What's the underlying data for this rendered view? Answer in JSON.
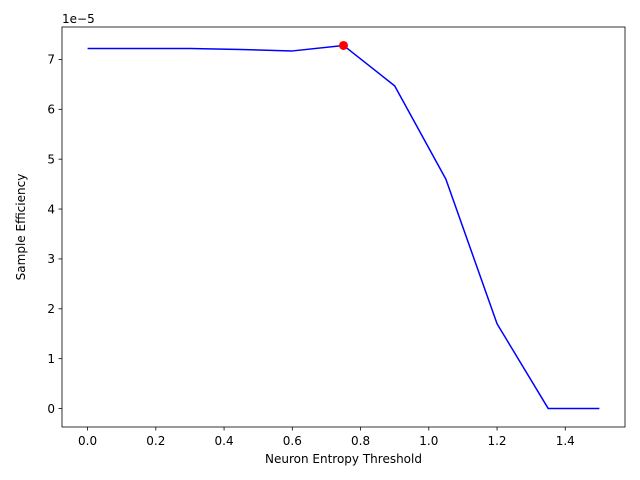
{
  "chart_data": {
    "type": "line",
    "title": "",
    "xlabel": "Neuron Entropy Threshold",
    "ylabel": "Sample Efficiency",
    "offset_text": "1e−5",
    "xlim": [
      -0.075,
      1.575
    ],
    "ylim": [
      -0.37,
      7.65
    ],
    "x_ticks": [
      0.0,
      0.2,
      0.4,
      0.6,
      0.8,
      1.0,
      1.2,
      1.4
    ],
    "x_tick_labels": [
      "0.0",
      "0.2",
      "0.4",
      "0.6",
      "0.8",
      "1.0",
      "1.2",
      "1.4"
    ],
    "y_ticks": [
      0,
      1,
      2,
      3,
      4,
      5,
      6,
      7
    ],
    "y_tick_labels": [
      "0",
      "1",
      "2",
      "3",
      "4",
      "5",
      "6",
      "7"
    ],
    "grid": false,
    "series": [
      {
        "color": "#0000ff",
        "x": [
          0.0,
          0.15,
          0.3,
          0.45,
          0.6,
          0.75,
          0.9,
          1.05,
          1.2,
          1.35,
          1.5
        ],
        "y": [
          7.22,
          7.22,
          7.22,
          7.2,
          7.17,
          7.28,
          6.47,
          4.6,
          1.7,
          0.0,
          0.0
        ]
      }
    ],
    "highlight_point": {
      "x": 0.75,
      "y": 7.28,
      "color": "#ff0000"
    }
  }
}
